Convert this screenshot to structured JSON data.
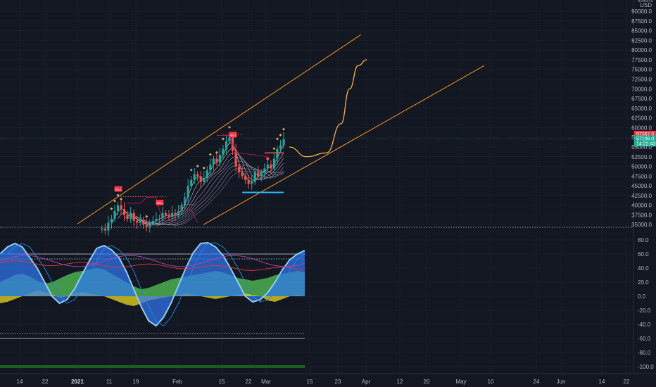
{
  "chart_data": [
    {
      "type": "candlestick",
      "title": "",
      "currency_label": "USD",
      "y_ticks": [
        "90000.0",
        "87500.0",
        "85000.0",
        "82500.0",
        "80000.0",
        "77500.0",
        "75000.0",
        "72500.0",
        "70000.0",
        "67500.0",
        "65000.0",
        "62500.0",
        "60000.0",
        "57500.0",
        "55000.0",
        "52500.0",
        "50000.0",
        "47500.0",
        "45000.0",
        "42500.0",
        "40000.0",
        "37500.0",
        "35000.0"
      ],
      "y_tick_values": [
        90000,
        87500,
        85000,
        82500,
        80000,
        77500,
        75000,
        72500,
        70000,
        67500,
        65000,
        62500,
        60000,
        57500,
        55000,
        52500,
        50000,
        47500,
        45000,
        42500,
        40000,
        37500,
        35000
      ],
      "ylim": [
        34500,
        92000
      ],
      "price_tags": [
        {
          "label": "57367.0",
          "value": 57367,
          "color": "#f23645"
        },
        {
          "label": "57106.0",
          "value": 57106,
          "color": "#22ab94"
        },
        {
          "label": "14:22:43",
          "value": 56200,
          "color": "#22ab94"
        }
      ],
      "candles_close": [
        34000,
        33500,
        35500,
        36500,
        38500,
        40000,
        39000,
        37500,
        36500,
        38000,
        36000,
        35500,
        36000,
        35000,
        34500,
        35500,
        36000,
        36500,
        36500,
        38000,
        37500,
        37000,
        38000,
        37500,
        38500,
        40000,
        42000,
        45000,
        46500,
        48000,
        47500,
        46000,
        47000,
        49000,
        50500,
        52000,
        51000,
        53000,
        54500,
        56500,
        57500,
        54000,
        50000,
        48500,
        47500,
        46500,
        45500,
        46000,
        48500,
        47500,
        48500,
        49500,
        50500,
        49500,
        52000,
        54500,
        55500,
        57000
      ],
      "channel_lines": [
        {
          "from": [
            "2021-01-01",
            35200
          ],
          "to": [
            "2021-04-10",
            84000
          ]
        },
        {
          "from": [
            "2021-02-14",
            35000
          ],
          "to": [
            "2021-05-23",
            76000
          ]
        }
      ],
      "projection_path": [
        [
          "2021-03-16",
          55000
        ],
        [
          "2021-03-22",
          52500
        ],
        [
          "2021-03-29",
          53500
        ],
        [
          "2021-04-03",
          61000
        ],
        [
          "2021-04-06",
          70000
        ],
        [
          "2021-04-09",
          76000
        ],
        [
          "2021-04-12",
          77500
        ]
      ],
      "markers": [
        {
          "label": "SELL",
          "color": "#f23645"
        },
        {
          "label": "SELL",
          "color": "#f23645"
        },
        {
          "label": "SELL",
          "color": "#f23645"
        }
      ]
    },
    {
      "type": "area",
      "title": "",
      "y_ticks": [
        "80.0",
        "60.0",
        "40.0",
        "20.0",
        "0.0",
        "-20.0",
        "-40.0",
        "-60.0",
        "-80.0",
        "-100.0"
      ],
      "y_tick_values": [
        80,
        60,
        40,
        20,
        0,
        -20,
        -40,
        -60,
        -80,
        -100
      ],
      "ylim": [
        -108,
        95
      ],
      "levels": [
        60,
        53,
        -53,
        -60
      ],
      "wave_osc": [
        60,
        70,
        75,
        70,
        55,
        40,
        20,
        0,
        -10,
        -5,
        10,
        30,
        50,
        68,
        72,
        66,
        55,
        35,
        10,
        -15,
        -35,
        -42,
        -30,
        -10,
        15,
        40,
        62,
        75,
        76,
        70,
        58,
        40,
        20,
        0,
        -8,
        -5,
        5,
        20,
        38,
        52,
        60,
        65
      ],
      "green_area": [
        20,
        25,
        30,
        32,
        28,
        22,
        18,
        20,
        25,
        30,
        34,
        36,
        38,
        40,
        38,
        32,
        26,
        20,
        14,
        10,
        12,
        16,
        20,
        24,
        26,
        28,
        30,
        32,
        34,
        36,
        34,
        30,
        26,
        24,
        22,
        24,
        26,
        30,
        32,
        34,
        36,
        34
      ],
      "yellow_area": [
        -10,
        -8,
        -4,
        0,
        4,
        8,
        6,
        2,
        -2,
        0,
        4,
        6,
        4,
        2,
        0,
        -4,
        -8,
        -12,
        -14,
        -10,
        -6,
        -4,
        -2,
        0,
        2,
        4,
        2,
        0,
        -2,
        -4,
        -2,
        0,
        2,
        4,
        2,
        0,
        -6,
        -8,
        -4,
        0,
        2,
        0
      ]
    }
  ],
  "x_axis": {
    "labels": [
      {
        "text": "14",
        "bold": false
      },
      {
        "text": "22",
        "bold": false
      },
      {
        "text": "2021",
        "bold": true
      },
      {
        "text": "11",
        "bold": false
      },
      {
        "text": "19",
        "bold": false
      },
      {
        "text": "Feb",
        "bold": false
      },
      {
        "text": "15",
        "bold": false
      },
      {
        "text": "22",
        "bold": false
      },
      {
        "text": "Mar",
        "bold": false
      },
      {
        "text": "15",
        "bold": false
      },
      {
        "text": "23",
        "bold": false
      },
      {
        "text": "Apr",
        "bold": false
      },
      {
        "text": "12",
        "bold": false
      },
      {
        "text": "20",
        "bold": false
      },
      {
        "text": "May",
        "bold": false
      },
      {
        "text": "10",
        "bold": false
      },
      {
        "text": "24",
        "bold": false
      },
      {
        "text": "Jun",
        "bold": false
      },
      {
        "text": "14",
        "bold": false
      },
      {
        "text": "22",
        "bold": false
      }
    ]
  },
  "colors": {
    "background": "#131722",
    "grid": "#1f2330",
    "up": "#26a69a",
    "down": "#ef5350",
    "channel": "#f7931a",
    "projection": "#f5b342",
    "cyan_line": "#29b6f6",
    "wave_blue": "#3179f5",
    "wave_light": "#8ecbf0",
    "green": "#4caf50",
    "yellow": "#d4c21c"
  }
}
